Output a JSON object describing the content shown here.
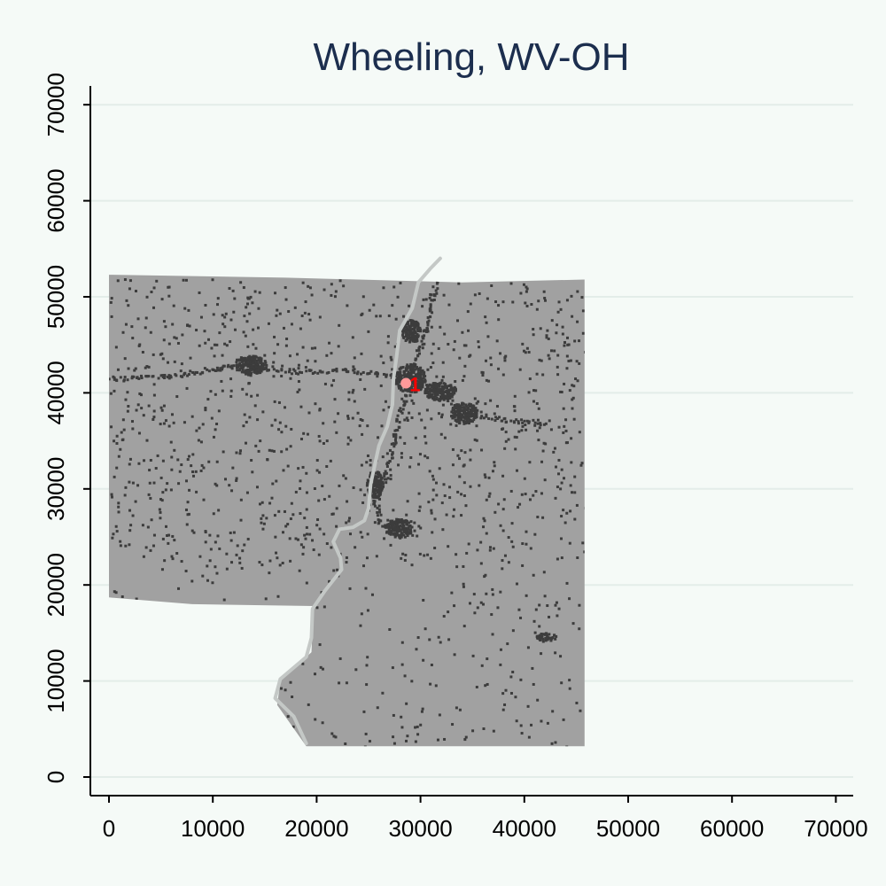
{
  "chart_data": {
    "type": "scatter",
    "title": "Wheeling, WV-OH",
    "xlabel": "",
    "ylabel": "",
    "xlim": [
      -2000,
      72000
    ],
    "ylim": [
      -2000,
      72000
    ],
    "x_ticks": [
      0,
      10000,
      20000,
      30000,
      40000,
      50000,
      60000,
      70000
    ],
    "y_ticks": [
      0,
      10000,
      20000,
      30000,
      40000,
      50000,
      60000,
      70000
    ],
    "grid": "horizontal",
    "colors": {
      "background": "#f5faf7",
      "region_fill": "#a1a1a1",
      "developed": "#3c3c3c",
      "river": "#c4c8c6",
      "title": "#1c2e4e",
      "marker": "#ff0000",
      "marker_halo": "#ff9a9a",
      "gridline": "#e3ede9"
    },
    "region_outline": [
      [
        0,
        52300
      ],
      [
        17000,
        52000
      ],
      [
        34000,
        51500
      ],
      [
        45800,
        51800
      ],
      [
        45800,
        3200
      ],
      [
        19000,
        3200
      ],
      [
        16200,
        7500
      ],
      [
        16500,
        10000
      ],
      [
        19500,
        13000
      ],
      [
        19700,
        17800
      ],
      [
        8000,
        18000
      ],
      [
        0,
        18700
      ]
    ],
    "river_path": [
      [
        31900,
        54000
      ],
      [
        31000,
        53000
      ],
      [
        29800,
        51500
      ],
      [
        29200,
        48800
      ],
      [
        28000,
        46500
      ],
      [
        27700,
        43800
      ],
      [
        27400,
        41500
      ],
      [
        27300,
        38800
      ],
      [
        26800,
        36500
      ],
      [
        26000,
        34500
      ],
      [
        25600,
        32500
      ],
      [
        25200,
        30500
      ],
      [
        25000,
        28000
      ],
      [
        24600,
        26700
      ],
      [
        23500,
        26000
      ],
      [
        22200,
        25800
      ],
      [
        21600,
        24500
      ],
      [
        22300,
        22800
      ],
      [
        22400,
        21600
      ],
      [
        20800,
        19400
      ],
      [
        19600,
        17500
      ],
      [
        19500,
        14500
      ],
      [
        19000,
        12500
      ],
      [
        16500,
        10200
      ],
      [
        16000,
        8200
      ],
      [
        17800,
        6300
      ],
      [
        19000,
        3500
      ]
    ],
    "urban_clusters": [
      {
        "x": 13500,
        "y": 43000,
        "rx": 1600,
        "ry": 1000
      },
      {
        "x": 28900,
        "y": 41600,
        "rx": 1500,
        "ry": 1500
      },
      {
        "x": 31800,
        "y": 40300,
        "rx": 1500,
        "ry": 1000
      },
      {
        "x": 34100,
        "y": 38000,
        "rx": 1300,
        "ry": 1100
      },
      {
        "x": 27800,
        "y": 26000,
        "rx": 1300,
        "ry": 1000
      },
      {
        "x": 25500,
        "y": 30600,
        "rx": 800,
        "ry": 1400
      },
      {
        "x": 29000,
        "y": 46500,
        "rx": 900,
        "ry": 1200
      },
      {
        "x": 42000,
        "y": 14700,
        "rx": 1000,
        "ry": 400
      }
    ],
    "corridors": [
      {
        "points": [
          [
            0,
            41500
          ],
          [
            7000,
            42000
          ],
          [
            10500,
            42700
          ],
          [
            13500,
            43000
          ],
          [
            18000,
            42300
          ],
          [
            23000,
            42500
          ],
          [
            28900,
            41600
          ]
        ]
      },
      {
        "points": [
          [
            28900,
            41600
          ],
          [
            31800,
            40300
          ],
          [
            34100,
            38000
          ],
          [
            38000,
            37300
          ],
          [
            42000,
            37000
          ]
        ]
      },
      {
        "points": [
          [
            28900,
            41600
          ],
          [
            30200,
            46000
          ],
          [
            31000,
            50000
          ],
          [
            32000,
            54000
          ]
        ]
      },
      {
        "points": [
          [
            28900,
            41600
          ],
          [
            27400,
            36000
          ],
          [
            26600,
            31500
          ],
          [
            25600,
            28800
          ],
          [
            26000,
            26500
          ],
          [
            27800,
            26000
          ]
        ]
      }
    ],
    "marker": {
      "label": "1",
      "x": 28600,
      "y": 41000
    }
  }
}
